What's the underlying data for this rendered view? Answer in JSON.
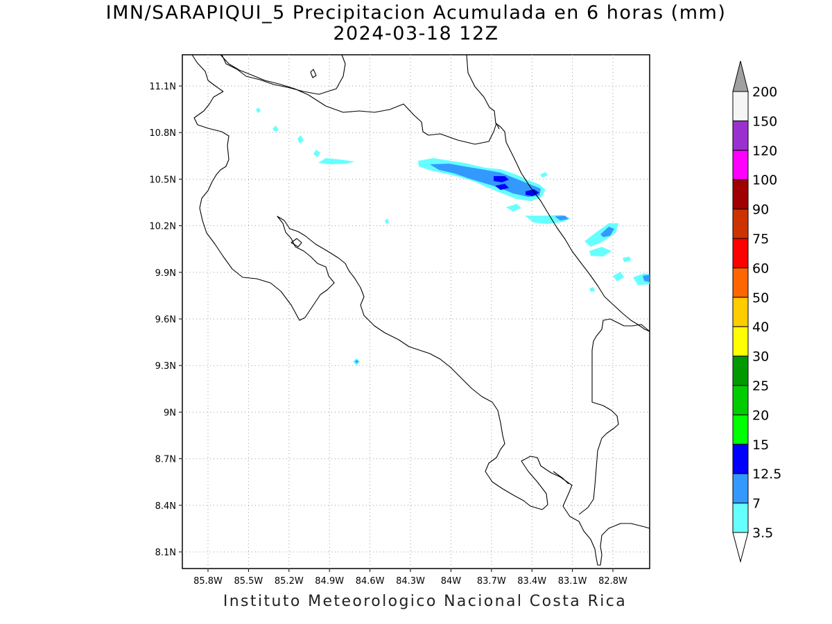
{
  "title": {
    "line1": "IMN/SARAPIQUI_5 Precipitacion Acumulada en 6 horas (mm)",
    "line2": "2024-03-18 12Z"
  },
  "footer": "Instituto Meteorologico Nacional Costa Rica",
  "map": {
    "lon_range": [
      -86.0,
      -83.0
    ],
    "lat_range": [
      8.0,
      11.3
    ],
    "lon_ticks": [
      "85.8W",
      "85.5W",
      "85.2W",
      "84.9W",
      "84.6W",
      "84.3W",
      "84W",
      "83.7W",
      "83.4W",
      "83.1W",
      "82.8W"
    ],
    "lat_ticks": [
      "11.1N",
      "10.8N",
      "10.5N",
      "10.2N",
      "9.9N",
      "9.6N",
      "9.3N",
      "9N",
      "8.7N",
      "8.4N",
      "8.1N"
    ],
    "grid": true,
    "coastline_color": "#000000"
  },
  "colorbar": {
    "labels": [
      "200",
      "150",
      "120",
      "100",
      "90",
      "75",
      "60",
      "50",
      "40",
      "30",
      "25",
      "20",
      "15",
      "12.5",
      "7",
      "3.5"
    ],
    "colors": [
      "#a0a0a0",
      "#f5f5f5",
      "#9b30d0",
      "#ff00ff",
      "#a00000",
      "#cc3300",
      "#ff0000",
      "#ff6600",
      "#ffcc00",
      "#ffff00",
      "#009900",
      "#00cc00",
      "#00ff00",
      "#0000ff",
      "#3399ff",
      "#66ffff",
      "#ffffff"
    ]
  }
}
